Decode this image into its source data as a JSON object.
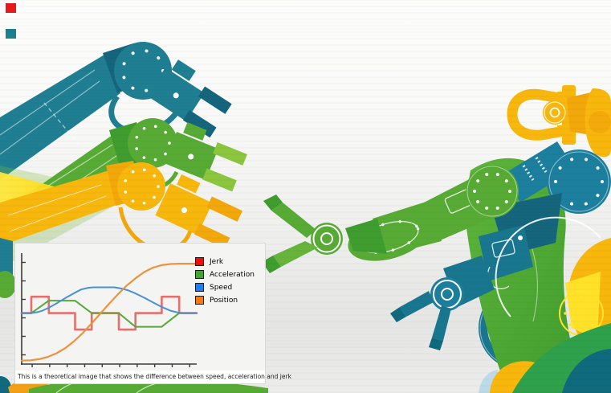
{
  "colors": {
    "teal": "#1f7e92",
    "teal_dark": "#15657c",
    "teal_mid": "#19768f",
    "teal_deep": "#0e6a7c",
    "blue_teal": "#1d7f9e",
    "green": "#57ab35",
    "green_dark": "#3f9c2e",
    "green_bright": "#8bc63e",
    "yellow": "#f7b70c",
    "yellow_bright": "#ffe42a",
    "orange_yellow": "#f2a70a",
    "beam_yellow": "#ffe93d",
    "marker_red": "#e6191c",
    "marker_teal": "#1b7f8e",
    "panel_bg": "#f4f4f2",
    "caption_bg": "#ffffff"
  },
  "chart_data": {
    "type": "line",
    "title": "",
    "xlabel": "",
    "ylabel": "",
    "caption": "This is a theoretical image that shows the difference between speed, acceleration and jerk",
    "x_range": [
      0,
      10
    ],
    "y_range": [
      -3.1,
      3.65
    ],
    "x_ticks_count": 10,
    "y_ticks_count": 6,
    "grid": false,
    "axis_color": "#3a3a3a",
    "legend_position": "right-of-plot-top",
    "legend": [
      {
        "label": "Jerk",
        "swatch": "#ea1008"
      },
      {
        "label": "Acceleration",
        "swatch": "#3fa82c"
      },
      {
        "label": "Speed",
        "swatch": "#1e7df0"
      },
      {
        "label": "Position",
        "swatch": "#f67a0c"
      }
    ],
    "series": [
      {
        "name": "Jerk",
        "color": "#e4605c",
        "width": 2.6,
        "opacity": 0.9,
        "points": [
          [
            0,
            0
          ],
          [
            0.55,
            0
          ],
          [
            0.55,
            1
          ],
          [
            1.55,
            1
          ],
          [
            1.55,
            0
          ],
          [
            3.05,
            0
          ],
          [
            3.05,
            -1
          ],
          [
            4.0,
            -1
          ],
          [
            4.0,
            0
          ],
          [
            5.55,
            0
          ],
          [
            5.55,
            -1
          ],
          [
            6.5,
            -1
          ],
          [
            6.5,
            0
          ],
          [
            8.0,
            0
          ],
          [
            8.0,
            1
          ],
          [
            9.0,
            1
          ],
          [
            9.0,
            0
          ],
          [
            10,
            0
          ]
        ]
      },
      {
        "name": "Acceleration",
        "color": "#56a83a",
        "width": 2,
        "opacity": 1,
        "points": [
          [
            0,
            0
          ],
          [
            0.55,
            0
          ],
          [
            1.55,
            0.76
          ],
          [
            3.05,
            0.76
          ],
          [
            4.0,
            0
          ],
          [
            5.55,
            0
          ],
          [
            6.5,
            -0.83
          ],
          [
            8.0,
            -0.83
          ],
          [
            9.0,
            0
          ],
          [
            10,
            0
          ]
        ]
      },
      {
        "name": "Speed",
        "color": "#4a90d9",
        "width": 2,
        "opacity": 1,
        "points": [
          [
            0,
            0
          ],
          [
            0.55,
            0
          ],
          [
            0.9,
            0.06
          ],
          [
            1.2,
            0.16
          ],
          [
            1.55,
            0.33
          ],
          [
            2.0,
            0.6
          ],
          [
            2.5,
            0.92
          ],
          [
            3.0,
            1.22
          ],
          [
            3.4,
            1.44
          ],
          [
            3.8,
            1.54
          ],
          [
            4.1,
            1.57
          ],
          [
            5.3,
            1.57
          ],
          [
            5.7,
            1.5
          ],
          [
            6.1,
            1.38
          ],
          [
            6.5,
            1.2
          ],
          [
            7.0,
            0.94
          ],
          [
            7.5,
            0.65
          ],
          [
            8.0,
            0.38
          ],
          [
            8.5,
            0.15
          ],
          [
            9.0,
            0.02
          ],
          [
            9.3,
            0
          ],
          [
            10,
            0
          ]
        ]
      },
      {
        "name": "Position",
        "color": "#f0913b",
        "width": 2.2,
        "opacity": 1,
        "points": [
          [
            0,
            -2.89
          ],
          [
            0.5,
            -2.87
          ],
          [
            1.0,
            -2.8
          ],
          [
            1.5,
            -2.66
          ],
          [
            2.0,
            -2.44
          ],
          [
            2.5,
            -2.12
          ],
          [
            3.0,
            -1.7
          ],
          [
            3.5,
            -1.2
          ],
          [
            4.0,
            -0.62
          ],
          [
            4.5,
            -0.02
          ],
          [
            5.0,
            0.58
          ],
          [
            5.5,
            1.15
          ],
          [
            6.0,
            1.68
          ],
          [
            6.5,
            2.12
          ],
          [
            7.0,
            2.5
          ],
          [
            7.5,
            2.77
          ],
          [
            8.0,
            2.92
          ],
          [
            8.5,
            2.99
          ],
          [
            9.0,
            3.01
          ],
          [
            10,
            3.01
          ]
        ]
      }
    ]
  }
}
